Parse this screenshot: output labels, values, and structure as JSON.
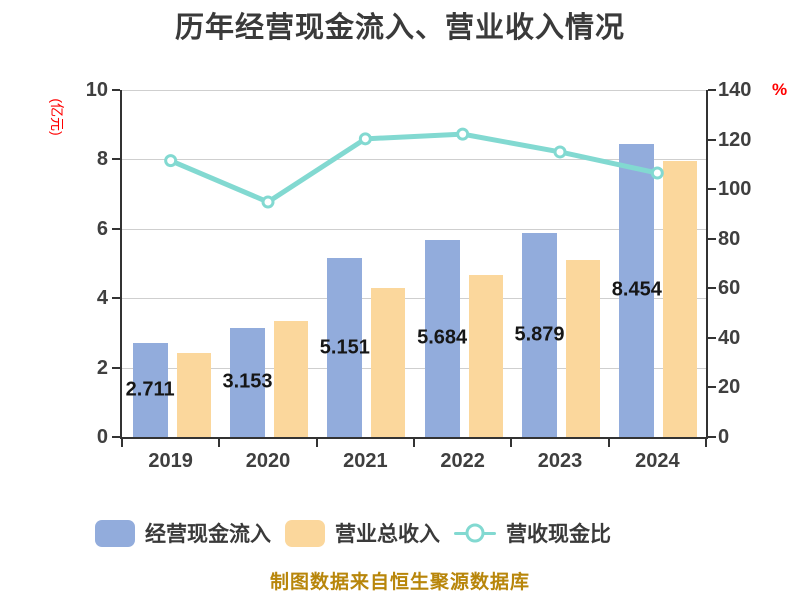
{
  "chart": {
    "title": "历年经营现金流入、营业收入情况",
    "source_note": "制图数据来自恒生聚源数据库"
  },
  "chart_data": {
    "type": "bar+line",
    "title": "历年经营现金流入、营业收入情况",
    "categories": [
      "2019",
      "2020",
      "2021",
      "2022",
      "2023",
      "2024"
    ],
    "series": [
      {
        "name": "经营现金流入",
        "type": "bar",
        "y_axis": "left",
        "color": "#92acdc",
        "values": [
          2.711,
          3.153,
          5.151,
          5.684,
          5.879,
          8.454
        ],
        "data_labels": [
          "2.711",
          "3.153",
          "5.151",
          "5.684",
          "5.879",
          "8.454"
        ]
      },
      {
        "name": "营业总收入",
        "type": "bar",
        "y_axis": "left",
        "color": "#fbd79c",
        "values": [
          2.43,
          3.33,
          4.28,
          4.66,
          5.11,
          7.94
        ]
      },
      {
        "name": "营收现金比",
        "type": "line",
        "y_axis": "right",
        "color": "#82d9d1",
        "values": [
          111.5,
          94.8,
          120.3,
          122.2,
          115.0,
          106.5
        ]
      }
    ],
    "left_axis": {
      "label": "(亿元)",
      "label_color": "#ff0000",
      "min": 0,
      "max": 10,
      "ticks": [
        0,
        2,
        4,
        6,
        8,
        10
      ]
    },
    "right_axis": {
      "label": "%",
      "label_color": "#ff0000",
      "min": 0,
      "max": 140,
      "ticks": [
        0,
        20,
        40,
        60,
        80,
        100,
        120,
        140
      ]
    },
    "grid": true,
    "legend_position": "bottom",
    "colors": {
      "bar_cash_inflow": "#92acdc",
      "bar_revenue": "#fbd79c",
      "ratio_line": "#82d9d1",
      "axis_line": "#333333",
      "gridline": "#cfcfcf",
      "axis_text": "#3f3f3f",
      "title_text": "#3a3a3a",
      "unit_text": "#ff0000",
      "source_text": "#b8860b"
    }
  },
  "legend": {
    "items": [
      {
        "label": "经营现金流入",
        "color": "#92acdc",
        "marker": "bar"
      },
      {
        "label": "营业总收入",
        "color": "#fbd79c",
        "marker": "bar"
      },
      {
        "label": "营收现金比",
        "color": "#82d9d1",
        "marker": "line-circle"
      }
    ]
  }
}
